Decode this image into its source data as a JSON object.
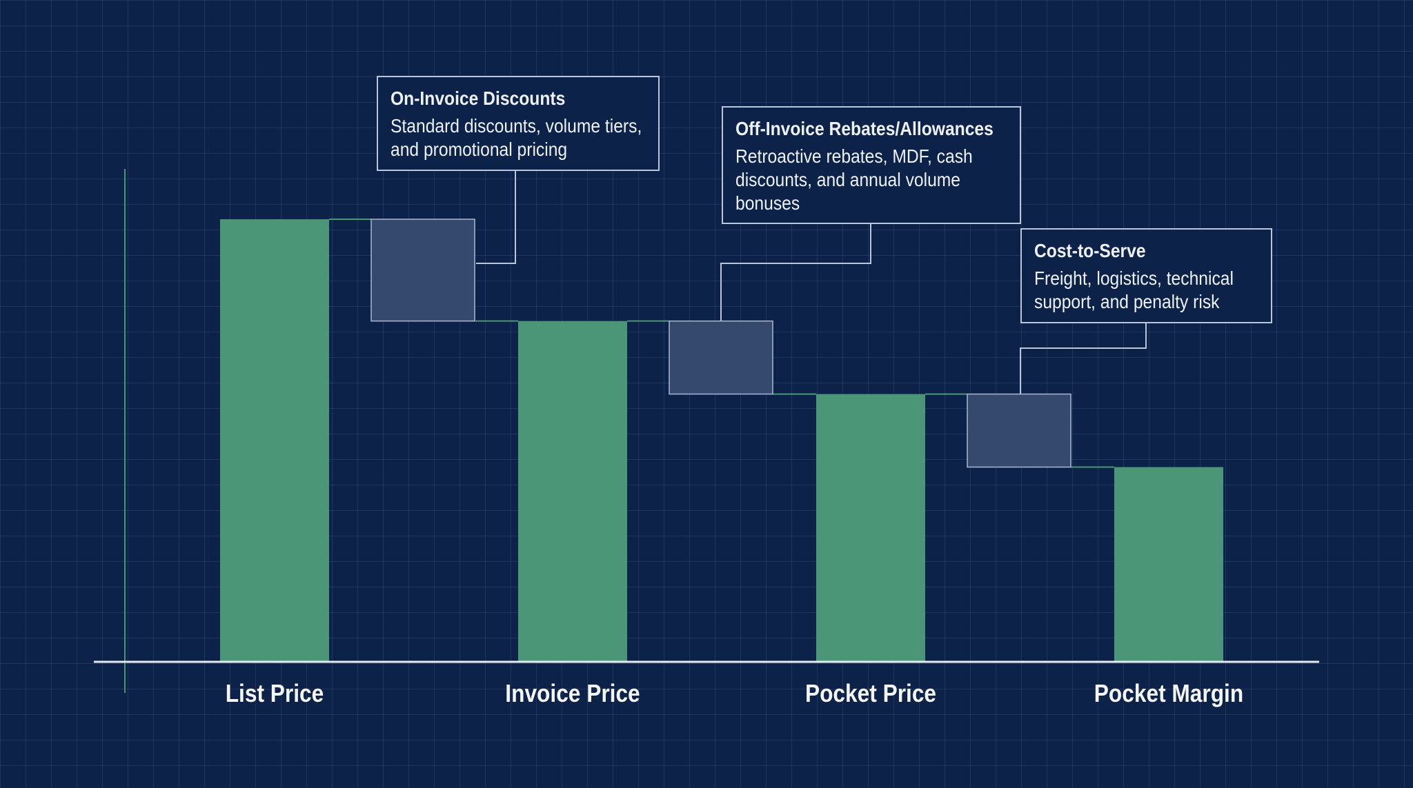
{
  "chart_data": {
    "type": "waterfall",
    "categories": [
      "List Price",
      "Invoice Price",
      "Pocket Price",
      "Pocket Margin"
    ],
    "totals": [
      100,
      77,
      60.5,
      44
    ],
    "deductions": [
      {
        "from": 100,
        "to": 77,
        "title": "On-Invoice Discounts",
        "description": "Standard discounts, volume tiers, and promotional pricing"
      },
      {
        "from": 77,
        "to": 60.5,
        "title": "Off-Invoice Rebates/Allowances",
        "description": "Retroactive rebates, MDF, cash discounts, and annual volume bonuses"
      },
      {
        "from": 60.5,
        "to": 44,
        "title": "Cost-to-Serve",
        "description": "Freight, logistics, technical support, and penalty risk"
      }
    ],
    "ylim": [
      0,
      100
    ],
    "colors": {
      "total": "#4a9677",
      "deduction": "#35496f",
      "axis": "#e8edf5",
      "yaxis": "#4a9677",
      "callout_border": "#b9c6dc",
      "background": "#0d2249"
    }
  }
}
